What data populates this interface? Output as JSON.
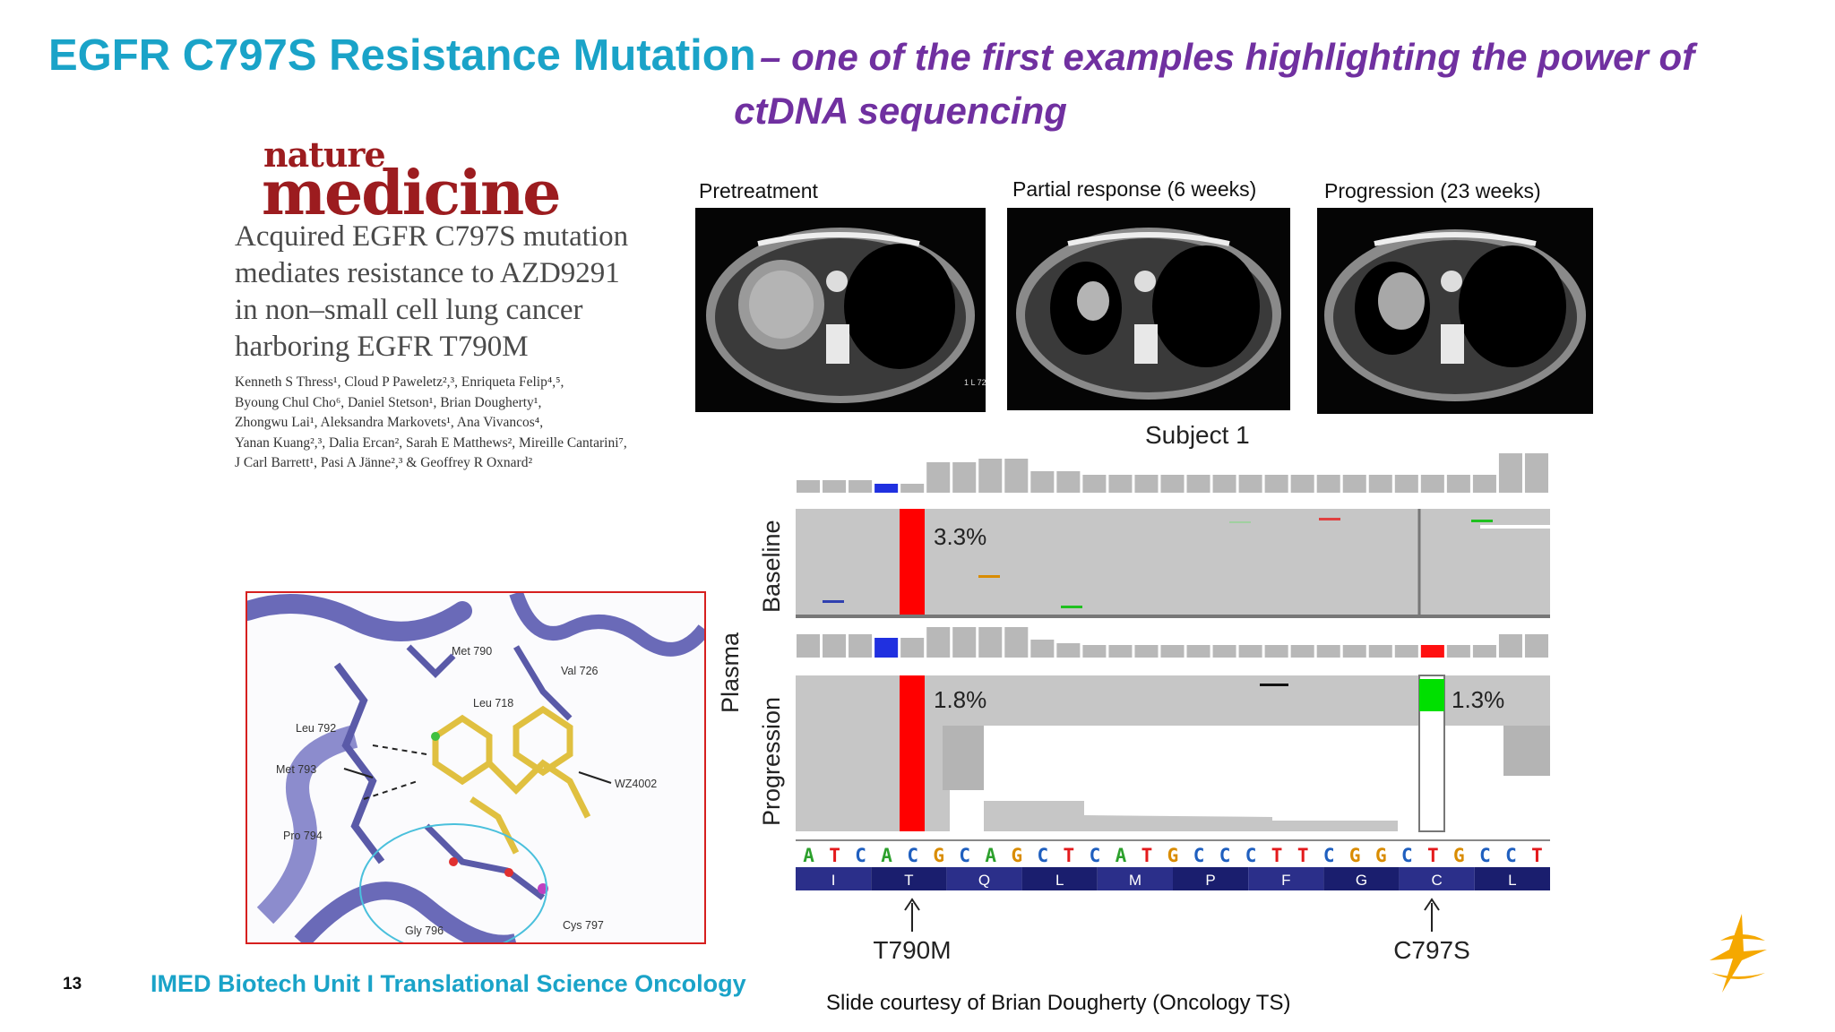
{
  "title": {
    "main": "EGFR C797S Resistance Mutation",
    "sub_part1": "– one of the first examples highlighting the power of",
    "sub_part2": "ctDNA sequencing"
  },
  "paper": {
    "journal_line1": "nature",
    "journal_line2": "medicine",
    "title_lines": [
      "Acquired EGFR C797S mutation",
      "mediates resistance to AZD9291",
      "in non–small cell lung cancer",
      "harboring EGFR T790M"
    ],
    "author_lines": [
      "Kenneth S Thress¹, Cloud P Paweletz²,³, Enriqueta Felip⁴,⁵,",
      "Byoung Chul Cho⁶, Daniel Stetson¹, Brian Dougherty¹,",
      "Zhongwu Lai¹, Aleksandra Markovets¹, Ana Vivancos⁴,",
      "Yanan Kuang²,³, Dalia Ercan², Sarah E Matthews², Mireille Cantarini⁷,",
      "J Carl Barrett¹, Pasi A Jänne²,³ & Geoffrey R Oxnard²"
    ]
  },
  "scans": [
    {
      "label": "Pretreatment",
      "corner_text": "1 L 72"
    },
    {
      "label": "Partial response (6 weeks)"
    },
    {
      "label": "Progression (23 weeks)"
    }
  ],
  "subject_label": "Subject 1",
  "igv": {
    "plasma_label": "Plasma",
    "baseline_label": "Baseline",
    "progression_label": "Progression",
    "baseline_t790m_pct": "3.3%",
    "progression_t790m_pct": "1.8%",
    "progression_c797s_pct": "1.3%",
    "sequence": [
      "A",
      "T",
      "C",
      "A",
      "C",
      "G",
      "C",
      "A",
      "G",
      "C",
      "T",
      "C",
      "A",
      "T",
      "G",
      "C",
      "C",
      "C",
      "T",
      "T",
      "C",
      "G",
      "G",
      "C",
      "T",
      "G",
      "C",
      "C",
      "T"
    ],
    "amino_acids": [
      "I",
      "T",
      "Q",
      "L",
      "M",
      "P",
      "F",
      "G",
      "C",
      "L"
    ],
    "marker_t790m": "T790M",
    "marker_c797s": "C797S",
    "base_colors": {
      "A": "#2ca02c",
      "T": "#e31a1c",
      "C": "#1f5fbf",
      "G": "#d98c00"
    }
  },
  "structure": {
    "residues": [
      "Met 790",
      "Val 726",
      "Leu 718",
      "Leu 792",
      "Met 793",
      "WZ4002",
      "Pro 794",
      "Gly 796",
      "Cys 797"
    ]
  },
  "footer": {
    "page_number": "13",
    "unit_text": "IMED Biotech Unit I Translational Science Oncology",
    "courtesy": "Slide courtesy of Brian Dougherty (Oncology TS)"
  },
  "colors": {
    "title_blue": "#1aa3c8",
    "subtitle_purple": "#7030a0",
    "logo_orange": "#f5a800"
  }
}
